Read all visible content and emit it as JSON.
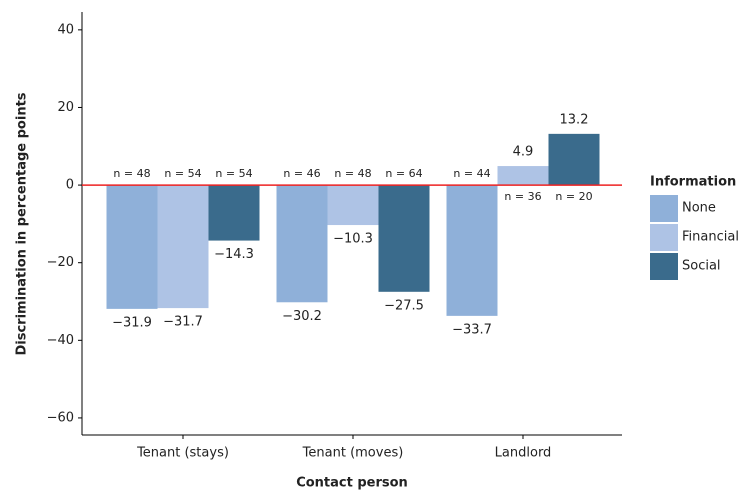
{
  "chart_data": {
    "type": "bar",
    "y_label": "Discrimination in percentage points",
    "x_label": "Contact person",
    "categories": [
      "Tenant (stays)",
      "Tenant (moves)",
      "Landlord"
    ],
    "series": [
      {
        "name": "None",
        "color": "#8fb0d9",
        "values": [
          -31.9,
          -30.2,
          -33.7
        ],
        "value_labels": [
          "−31.9",
          "−30.2",
          "−33.7"
        ],
        "sample_labels": [
          "n = 48",
          "n = 46",
          "n = 44"
        ]
      },
      {
        "name": "Financial",
        "color": "#aec3e5",
        "values": [
          -31.7,
          -10.3,
          4.9
        ],
        "value_labels": [
          "−31.7",
          "−10.3",
          "4.9"
        ],
        "sample_labels": [
          "n = 54",
          "n = 48",
          "n = 36"
        ]
      },
      {
        "name": "Social",
        "color": "#3a6b8c",
        "values": [
          -14.3,
          -27.5,
          13.2
        ],
        "value_labels": [
          "−14.3",
          "−27.5",
          "13.2"
        ],
        "sample_labels": [
          "n = 54",
          "n = 64",
          "n = 20"
        ]
      }
    ],
    "legend_title": "Information",
    "legend": "right",
    "reference_line": {
      "value": 0,
      "color": "#ee2222"
    },
    "ylim": [
      -64.4,
      44.6
    ],
    "yticks": [
      40,
      20,
      0,
      {
        "value": -20,
        "label": "−20"
      },
      {
        "value": -40,
        "label": "−40"
      },
      {
        "value": -60,
        "label": "−60"
      }
    ]
  }
}
